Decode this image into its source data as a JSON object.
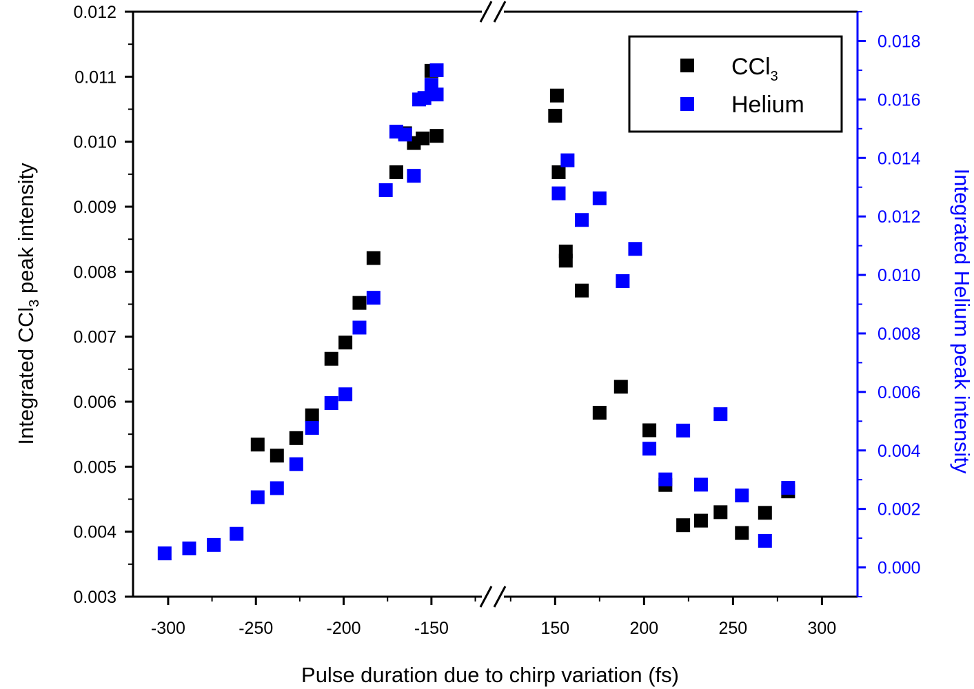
{
  "chart_data": {
    "type": "scatter",
    "xlabel": "Pulse duration due to chirp variation (fs)",
    "ylabel_left": {
      "prefix": "Integrated CCl",
      "sub": "3",
      "suffix": " peak intensity"
    },
    "ylabel_right": "Integrated Helium peak intensity",
    "x_segments": [
      {
        "range": [
          -320,
          -115
        ],
        "ticks": [
          -300,
          -250,
          -200,
          -150
        ]
      },
      {
        "range": [
          115,
          320
        ],
        "ticks": [
          150,
          200,
          250,
          300
        ]
      }
    ],
    "x_tick_labels": [
      "-300",
      "-250",
      "-200",
      "-150",
      "150",
      "200",
      "250",
      "300"
    ],
    "ylim_left": [
      0.003,
      0.012
    ],
    "yticks_left": [
      "0.003",
      "0.004",
      "0.005",
      "0.006",
      "0.007",
      "0.008",
      "0.009",
      "0.010",
      "0.011",
      "0.012"
    ],
    "ylim_right": [
      -0.001,
      0.019
    ],
    "yticks_right": [
      "0.000",
      "0.002",
      "0.004",
      "0.006",
      "0.008",
      "0.010",
      "0.012",
      "0.014",
      "0.016",
      "0.018"
    ],
    "legend": {
      "position": "top-right"
    },
    "colors": {
      "ccl3": "#000000",
      "helium": "#0000ff"
    },
    "series": [
      {
        "name": "CCl3",
        "label_main": "CCl",
        "label_sub": "3",
        "axis": "left",
        "color": "#000000",
        "points": [
          [
            -249,
            0.00534
          ],
          [
            -238,
            0.00517
          ],
          [
            -227,
            0.00544
          ],
          [
            -218,
            0.00579
          ],
          [
            -207,
            0.00666
          ],
          [
            -199,
            0.00691
          ],
          [
            -191,
            0.00752
          ],
          [
            -183,
            0.00821
          ],
          [
            -170,
            0.00953
          ],
          [
            -165,
            0.01013
          ],
          [
            -160,
            0.00998
          ],
          [
            -155,
            0.01005
          ],
          [
            -147,
            0.01009
          ],
          [
            -150,
            0.01109
          ],
          [
            151,
            0.01071
          ],
          [
            150,
            0.0104
          ],
          [
            152,
            0.00953
          ],
          [
            156,
            0.00831
          ],
          [
            156,
            0.00817
          ],
          [
            165,
            0.00771
          ],
          [
            175,
            0.00583
          ],
          [
            187,
            0.00623
          ],
          [
            203,
            0.00556
          ],
          [
            212,
            0.00472
          ],
          [
            222,
            0.0041
          ],
          [
            232,
            0.00417
          ],
          [
            243,
            0.0043
          ],
          [
            255,
            0.00398
          ],
          [
            268,
            0.00429
          ],
          [
            281,
            0.00462
          ]
        ]
      },
      {
        "name": "Helium",
        "label_main": "Helium",
        "label_sub": "",
        "axis": "right",
        "color": "#0000ff",
        "points": [
          [
            -302,
            0.00048
          ],
          [
            -288,
            0.00065
          ],
          [
            -274,
            0.00077
          ],
          [
            -261,
            0.00115
          ],
          [
            -249,
            0.0024
          ],
          [
            -238,
            0.00271
          ],
          [
            -227,
            0.00353
          ],
          [
            -218,
            0.00477
          ],
          [
            -207,
            0.00562
          ],
          [
            -199,
            0.00592
          ],
          [
            -191,
            0.0082
          ],
          [
            -183,
            0.00922
          ],
          [
            -176,
            0.0129
          ],
          [
            -170,
            0.0149
          ],
          [
            -165,
            0.0148
          ],
          [
            -160,
            0.01339
          ],
          [
            -157,
            0.016
          ],
          [
            -154,
            0.01605
          ],
          [
            -150,
            0.0165
          ],
          [
            -147,
            0.01617
          ],
          [
            -147,
            0.017
          ],
          [
            152,
            0.01279
          ],
          [
            157,
            0.01392
          ],
          [
            165,
            0.01188
          ],
          [
            175,
            0.01262
          ],
          [
            188,
            0.00979
          ],
          [
            195,
            0.01089
          ],
          [
            203,
            0.00406
          ],
          [
            212,
            0.00301
          ],
          [
            222,
            0.00468
          ],
          [
            232,
            0.00283
          ],
          [
            243,
            0.00524
          ],
          [
            255,
            0.00246
          ],
          [
            268,
            0.00091
          ],
          [
            281,
            0.00272
          ]
        ]
      }
    ]
  }
}
